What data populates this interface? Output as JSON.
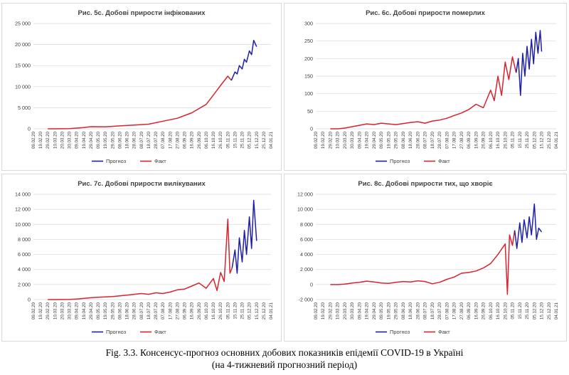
{
  "x_labels": [
    "09.02.20",
    "19.02.20",
    "29.02.20",
    "10.03.20",
    "20.03.20",
    "30.03.20",
    "09.04.20",
    "19.04.20",
    "29.04.20",
    "09.05.20",
    "19.05.20",
    "29.05.20",
    "08.06.20",
    "18.06.20",
    "28.06.20",
    "08.07.20",
    "18.07.20",
    "28.07.20",
    "07.08.20",
    "17.08.20",
    "27.08.20",
    "06.09.20",
    "16.09.20",
    "26.09.20",
    "06.10.20",
    "16.10.20",
    "26.10.20",
    "05.11.20",
    "15.11.20",
    "25.11.20",
    "05.12.20",
    "15.12.20",
    "25.12.20",
    "04.01.21"
  ],
  "colors": {
    "forecast": "#1f1fa6",
    "fact": "#d9232e"
  },
  "legend": {
    "forecast": "Прогноз",
    "fact": "Факт"
  },
  "caption": {
    "line1": "Fig. 3.3. Консенсус-прогноз основних добових показників епідемії COVID-19 в Україні",
    "line2": "(на 4-тижневий прогнозний період)"
  },
  "chart_data": [
    {
      "id": "p5",
      "type": "line",
      "title": "Рис. 5с. Добові прирости інфікованих",
      "ylim": [
        0,
        25000
      ],
      "yticks": [
        0,
        5000,
        10000,
        15000,
        20000,
        25000
      ],
      "ytick_labels": [
        "0",
        "5 000",
        "10 000",
        "15 000",
        "20 000",
        "25 000"
      ],
      "fact": {
        "x": [
          2,
          3,
          5,
          7,
          8,
          10,
          12,
          14,
          16,
          18,
          20,
          22,
          24,
          25,
          26,
          27,
          27.5
        ],
        "y": [
          0,
          0,
          50,
          300,
          500,
          450,
          700,
          900,
          1100,
          1800,
          2500,
          3800,
          5800,
          8000,
          10300,
          12500,
          11500
        ]
      },
      "forecast": {
        "x": [
          27.5,
          28,
          28.3,
          28.6,
          29,
          29.3,
          29.6,
          30,
          30.3,
          30.6,
          31
        ],
        "y": [
          11500,
          13500,
          13000,
          15000,
          14200,
          16500,
          15800,
          18500,
          17600,
          21000,
          19500
        ]
      }
    },
    {
      "id": "p6",
      "type": "line",
      "title": "Рис. 6с. Добові прирости померлих",
      "ylim": [
        0,
        300
      ],
      "yticks": [
        0,
        50,
        100,
        150,
        200,
        250,
        300
      ],
      "ytick_labels": [
        "0",
        "50",
        "100",
        "150",
        "200",
        "250",
        "300"
      ],
      "fact": {
        "x": [
          2,
          3,
          4,
          5,
          6,
          7,
          8,
          9,
          10,
          11,
          12,
          13,
          14,
          15,
          16,
          17,
          18,
          19,
          20,
          21,
          22,
          23,
          24,
          24.5,
          25,
          25.5,
          26,
          26.5,
          27,
          27.5
        ],
        "y": [
          0,
          0,
          2,
          6,
          10,
          14,
          12,
          16,
          14,
          12,
          15,
          18,
          20,
          16,
          22,
          25,
          30,
          38,
          45,
          55,
          70,
          60,
          110,
          80,
          150,
          95,
          190,
          140,
          205,
          160
        ]
      },
      "forecast": {
        "x": [
          27.5,
          27.8,
          28.1,
          28.4,
          28.7,
          29,
          29.3,
          29.6,
          29.9,
          30.2,
          30.5,
          30.8,
          31
        ],
        "y": [
          160,
          200,
          95,
          215,
          150,
          235,
          170,
          255,
          185,
          275,
          215,
          280,
          220
        ]
      }
    },
    {
      "id": "p7",
      "type": "line",
      "title": "Рис. 7с. Добові прирости вилікуваних",
      "ylim": [
        0,
        14000
      ],
      "yticks": [
        0,
        2000,
        4000,
        6000,
        8000,
        10000,
        12000,
        14000
      ],
      "ytick_labels": [
        "0",
        "2 000",
        "4 000",
        "6 000",
        "8 000",
        "10 000",
        "12 000",
        "14 000"
      ],
      "fact": {
        "x": [
          2,
          3,
          5,
          6,
          7,
          8,
          9,
          10,
          11,
          12,
          13,
          14,
          15,
          16,
          17,
          18,
          19,
          20,
          21,
          22,
          23,
          24,
          25,
          25.5,
          26,
          26.5,
          27,
          27.3,
          27.6
        ],
        "y": [
          0,
          0,
          20,
          80,
          150,
          250,
          300,
          350,
          400,
          500,
          600,
          700,
          800,
          700,
          900,
          800,
          1000,
          1300,
          1400,
          1800,
          2200,
          1500,
          2800,
          1200,
          3600,
          2400,
          10700,
          3500,
          4200
        ]
      },
      "forecast": {
        "x": [
          27.6,
          28,
          28.3,
          28.6,
          29,
          29.3,
          29.6,
          30,
          30.3,
          30.6,
          31
        ],
        "y": [
          4200,
          6600,
          3500,
          8200,
          5000,
          9200,
          6000,
          11000,
          6800,
          13200,
          7800
        ]
      }
    },
    {
      "id": "p8",
      "type": "line",
      "title": "Рис. 8с. Добові прирости тих, що хворіє",
      "ylim": [
        -2000,
        12000
      ],
      "yticks": [
        -2000,
        0,
        2000,
        4000,
        6000,
        8000,
        10000,
        12000
      ],
      "ytick_labels": [
        "-2 000",
        "0",
        "2 000",
        "4 000",
        "6 000",
        "8 000",
        "10 000",
        "12 000"
      ],
      "fact": {
        "x": [
          2,
          3,
          4,
          5,
          6,
          7,
          8,
          9,
          10,
          11,
          12,
          13,
          14,
          15,
          16,
          17,
          18,
          19,
          20,
          21,
          22,
          23,
          24,
          25,
          26,
          26.3,
          26.6,
          27,
          27.3
        ],
        "y": [
          0,
          0,
          50,
          200,
          300,
          450,
          350,
          200,
          150,
          300,
          400,
          350,
          500,
          400,
          100,
          300,
          700,
          1000,
          1500,
          1600,
          1800,
          2200,
          2800,
          4000,
          5400,
          -1300,
          6600,
          5200,
          7200
        ]
      },
      "forecast": {
        "x": [
          27.3,
          27.6,
          28,
          28.3,
          28.6,
          29,
          29.3,
          29.6,
          30,
          30.3,
          30.6,
          31
        ],
        "y": [
          7200,
          4800,
          8200,
          5600,
          8600,
          6200,
          9000,
          6600,
          10700,
          6000,
          7500,
          7000
        ]
      }
    }
  ]
}
